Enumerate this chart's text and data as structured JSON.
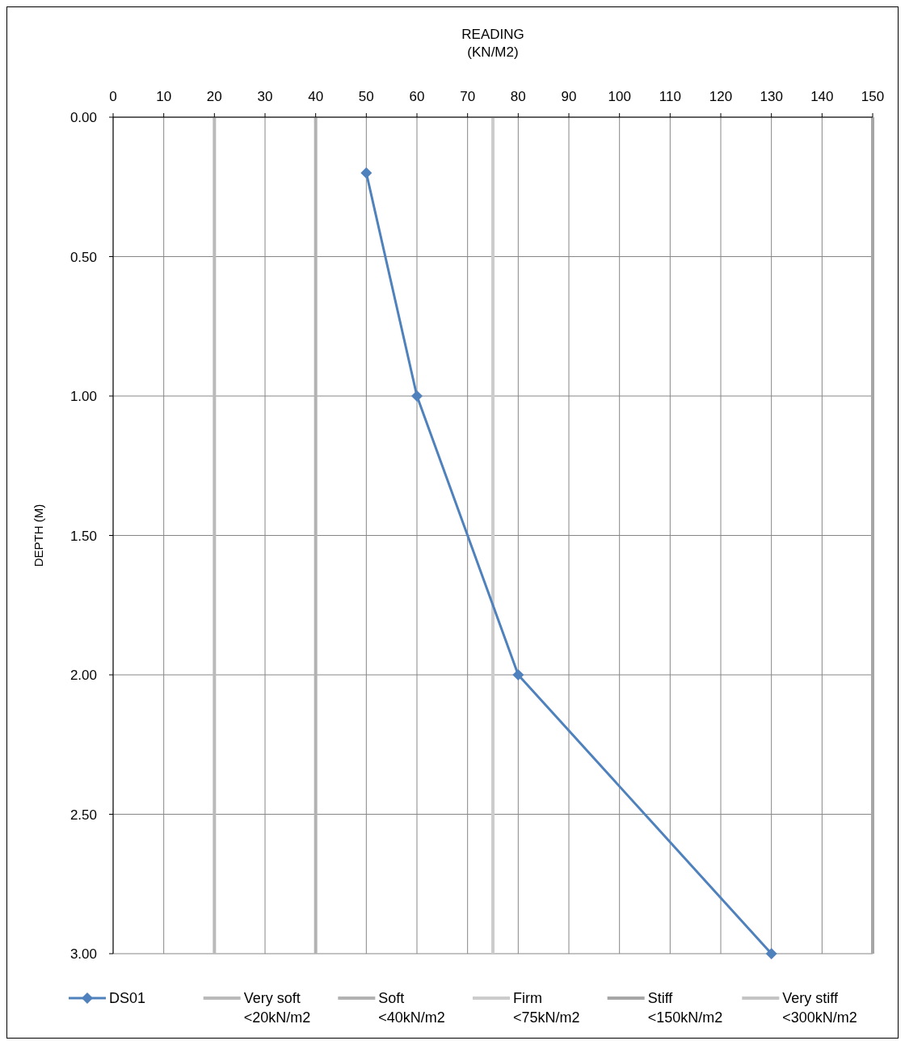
{
  "chart_data": {
    "type": "line",
    "xlabel": "READING\n(KN/M2)",
    "ylabel": "DEPTH (M)",
    "xlim": [
      0,
      150
    ],
    "xticks": [
      0,
      10,
      20,
      30,
      40,
      50,
      60,
      70,
      80,
      90,
      100,
      110,
      120,
      130,
      140,
      150
    ],
    "ylim": [
      3,
      0
    ],
    "yticks": [
      {
        "value": 0,
        "label": "0.00"
      },
      {
        "value": 0.5,
        "label": "0.50"
      },
      {
        "value": 1,
        "label": "1.00"
      },
      {
        "value": 1.5,
        "label": "1.50"
      },
      {
        "value": 2,
        "label": "2.00"
      },
      {
        "value": 2.5,
        "label": "2.50"
      },
      {
        "value": 3,
        "label": "3.00"
      }
    ],
    "grid": true,
    "legend": "bottom",
    "line_style": "solid",
    "series": [
      {
        "name": "DS01",
        "color": "#4f81bd",
        "marker": "diamond",
        "x": [
          50,
          60,
          80,
          130
        ],
        "values": [
          0.2,
          1,
          2,
          3
        ]
      },
      {
        "name": "Very stiff\n<300kN/m2",
        "color": "#c4c4c4",
        "marker": "none",
        "values": [
          null,
          null
        ]
      }
    ],
    "ref_lines": [
      {
        "axis": "x",
        "value": 20,
        "label": "Very soft\n<20kN/m2",
        "color": "#bababa"
      },
      {
        "axis": "x",
        "value": 40,
        "label": "Soft\n<40kN/m2",
        "color": "#b2b2b2"
      },
      {
        "axis": "x",
        "value": 75,
        "label": "Firm\n<75kN/m2",
        "color": "#cccccc"
      },
      {
        "axis": "x",
        "value": 150,
        "label": "Stiff\n<150kN/m2",
        "color": "#a6a6a6"
      }
    ]
  }
}
